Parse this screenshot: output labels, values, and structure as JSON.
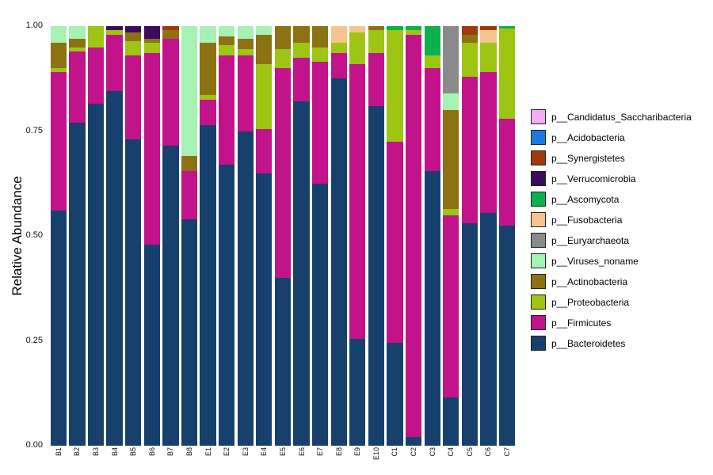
{
  "chart_data": {
    "type": "bar",
    "stacked": true,
    "orientation": "vertical",
    "title": "",
    "xlabel": "",
    "ylabel": "Relative Abundance",
    "ylim": [
      0,
      1
    ],
    "yticks": [
      0,
      0.25,
      0.5,
      0.75,
      1
    ],
    "grid": false,
    "legend_position": "right",
    "categories": [
      "B1",
      "B2",
      "B3",
      "B4",
      "B5",
      "B6",
      "B7",
      "B8",
      "E1",
      "E2",
      "E3",
      "E4",
      "E5",
      "E6",
      "E7",
      "E8",
      "E9",
      "E10",
      "C1",
      "C2",
      "C3",
      "C4",
      "C5",
      "C6",
      "C7"
    ],
    "series": [
      {
        "name": "p__Candidatus_Saccharibacteria",
        "color": "#f1adf0",
        "values": [
          0,
          0,
          0,
          0,
          0,
          0,
          0,
          0,
          0,
          0,
          0,
          0,
          0,
          0,
          0,
          0,
          0,
          0,
          0,
          0,
          0,
          0,
          0,
          0,
          0
        ]
      },
      {
        "name": "p__Acidobacteria",
        "color": "#1d79e0",
        "values": [
          0,
          0,
          0,
          0,
          0,
          0,
          0,
          0,
          0,
          0,
          0,
          0,
          0,
          0,
          0,
          0,
          0,
          0,
          0,
          0,
          0,
          0,
          0,
          0,
          0
        ]
      },
      {
        "name": "p__Synergistetes",
        "color": "#a0390b",
        "values": [
          0,
          0,
          0,
          0,
          0,
          0,
          0.01,
          0,
          0,
          0,
          0,
          0,
          0,
          0,
          0,
          0,
          0,
          0,
          0,
          0,
          0,
          0,
          0.02,
          0.01,
          0
        ]
      },
      {
        "name": "p__Verrucomicrobia",
        "color": "#3a0c59",
        "values": [
          0,
          0,
          0,
          0.01,
          0.015,
          0.03,
          0,
          0,
          0,
          0,
          0,
          0,
          0,
          0,
          0,
          0,
          0,
          0,
          0,
          0,
          0,
          0,
          0,
          0,
          0
        ]
      },
      {
        "name": "p__Ascomycota",
        "color": "#0cb14e",
        "values": [
          0,
          0,
          0,
          0,
          0,
          0,
          0,
          0,
          0,
          0,
          0,
          0,
          0,
          0,
          0,
          0,
          0,
          0,
          0.01,
          0.01,
          0.07,
          0,
          0,
          0,
          0.005
        ]
      },
      {
        "name": "p__Fusobacteria",
        "color": "#f6c48e",
        "values": [
          0,
          0,
          0,
          0,
          0,
          0,
          0,
          0,
          0,
          0,
          0,
          0,
          0,
          0,
          0,
          0.04,
          0.015,
          0,
          0,
          0,
          0,
          0,
          0,
          0.03,
          0
        ]
      },
      {
        "name": "p__Euryarchaeota",
        "color": "#8a8a8a",
        "values": [
          0,
          0,
          0,
          0,
          0,
          0,
          0,
          0,
          0,
          0,
          0,
          0,
          0,
          0,
          0,
          0,
          0,
          0,
          0,
          0,
          0,
          0.16,
          0,
          0,
          0
        ]
      },
      {
        "name": "p__Viruses_noname",
        "color": "#a5f2b3",
        "values": [
          0.04,
          0.03,
          0,
          0,
          0,
          0,
          0,
          0.31,
          0.04,
          0.025,
          0.03,
          0.02,
          0,
          0,
          0,
          0,
          0,
          0,
          0,
          0,
          0,
          0.04,
          0,
          0,
          0
        ]
      },
      {
        "name": "p__Actinobacteria",
        "color": "#8c7212",
        "values": [
          0.06,
          0.02,
          0,
          0,
          0.02,
          0.01,
          0.02,
          0.035,
          0.125,
          0.02,
          0.025,
          0.07,
          0.055,
          0.04,
          0.05,
          0,
          0,
          0.01,
          0,
          0,
          0,
          0.235,
          0.02,
          0,
          0
        ]
      },
      {
        "name": "p__Proteobacteria",
        "color": "#9ec514",
        "values": [
          0.01,
          0.01,
          0.05,
          0.01,
          0.035,
          0.025,
          0,
          0,
          0.01,
          0.025,
          0.015,
          0.155,
          0.045,
          0.035,
          0.035,
          0.025,
          0.075,
          0.055,
          0.265,
          0.01,
          0.03,
          0.015,
          0.08,
          0.07,
          0.215
        ]
      },
      {
        "name": "p__Firmicutes",
        "color": "#c2138a",
        "values": [
          0.33,
          0.17,
          0.135,
          0.135,
          0.2,
          0.455,
          0.255,
          0.115,
          0.06,
          0.26,
          0.18,
          0.105,
          0.5,
          0.105,
          0.29,
          0.06,
          0.655,
          0.125,
          0.48,
          0.96,
          0.245,
          0.435,
          0.35,
          0.335,
          0.255
        ]
      },
      {
        "name": "p__Bacteroidetes",
        "color": "#17406d",
        "values": [
          0.56,
          0.77,
          0.815,
          0.845,
          0.73,
          0.48,
          0.715,
          0.54,
          0.765,
          0.67,
          0.75,
          0.65,
          0.4,
          0.82,
          0.625,
          0.875,
          0.255,
          0.81,
          0.245,
          0.02,
          0.655,
          0.115,
          0.53,
          0.555,
          0.525
        ]
      }
    ]
  }
}
